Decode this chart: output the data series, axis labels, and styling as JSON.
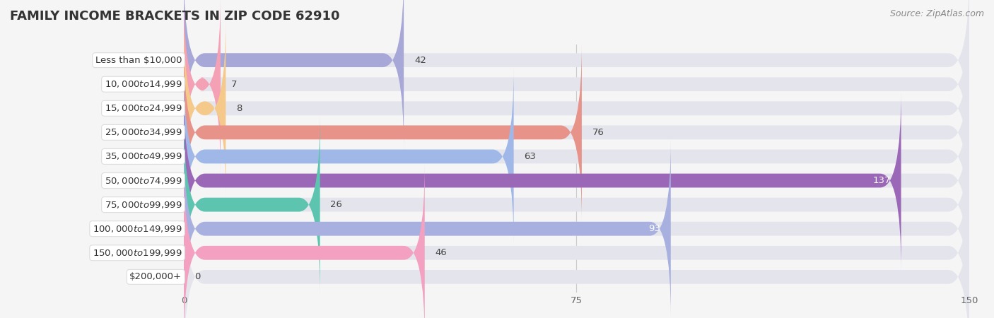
{
  "title": "FAMILY INCOME BRACKETS IN ZIP CODE 62910",
  "source": "Source: ZipAtlas.com",
  "categories": [
    "Less than $10,000",
    "$10,000 to $14,999",
    "$15,000 to $24,999",
    "$25,000 to $34,999",
    "$35,000 to $49,999",
    "$50,000 to $74,999",
    "$75,000 to $99,999",
    "$100,000 to $149,999",
    "$150,000 to $199,999",
    "$200,000+"
  ],
  "values": [
    42,
    7,
    8,
    76,
    63,
    137,
    26,
    93,
    46,
    0
  ],
  "bar_colors": [
    "#a8a8d8",
    "#f4a0b5",
    "#f5c98a",
    "#e8938a",
    "#a0b8e8",
    "#9b68b8",
    "#5dc4b0",
    "#a8b0e0",
    "#f4a0c0",
    "#f5c98a"
  ],
  "xlim": [
    0,
    150
  ],
  "xticks": [
    0,
    75,
    150
  ],
  "background_color": "#f5f5f5",
  "bar_bg_color": "#e4e4ec",
  "row_bg_color": "#ebebf0",
  "title_fontsize": 13,
  "label_fontsize": 9.5,
  "value_fontsize": 9.5
}
